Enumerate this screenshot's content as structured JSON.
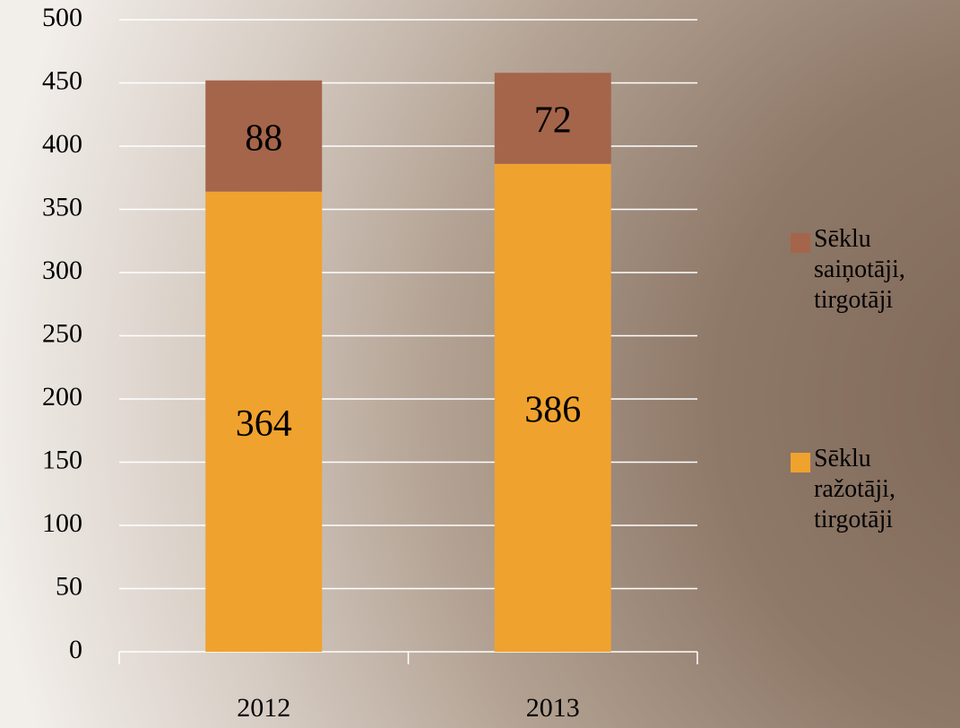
{
  "chart_data": {
    "type": "stacked_bar",
    "categories": [
      "2012",
      "2013"
    ],
    "series": [
      {
        "name": "Sēklu ražotāji, tirgotāji",
        "color": "#f0a22e",
        "values": [
          364,
          386
        ]
      },
      {
        "name": "Sēklu saiņotāji, tirgotāji",
        "color": "#a5654a",
        "values": [
          88,
          72
        ]
      }
    ],
    "ylim": [
      0,
      500
    ],
    "yticks": [
      0,
      50,
      100,
      150,
      200,
      250,
      300,
      350,
      400,
      450,
      500
    ],
    "grid": true,
    "legend": "right"
  }
}
